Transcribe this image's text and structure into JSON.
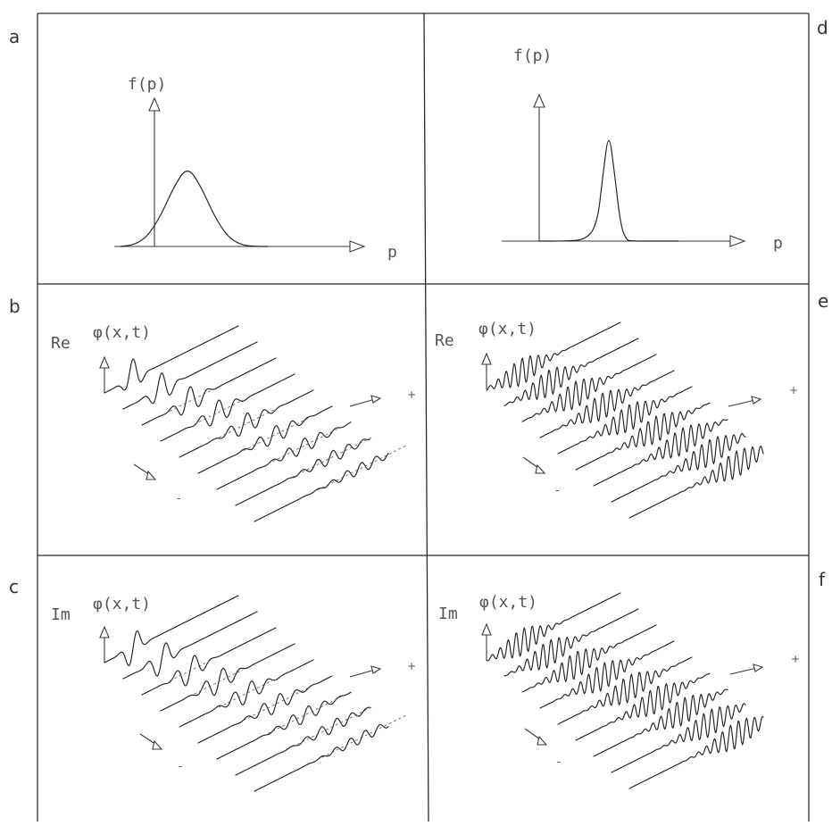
{
  "panels": {
    "a": {
      "letter": "a",
      "ylabel": "f(p)",
      "xlabel": "p"
    },
    "d": {
      "letter": "d",
      "ylabel": "f(p)",
      "xlabel": "p"
    },
    "b": {
      "letter": "b",
      "part": "Re",
      "func": "φ(x,t)"
    },
    "e": {
      "letter": "e",
      "part": "Re",
      "func": "φ(x,t)"
    },
    "c": {
      "letter": "c",
      "part": "Im",
      "func": "φ(x,t)"
    },
    "f": {
      "letter": "f",
      "part": "Im",
      "func": "φ(x,t)"
    }
  },
  "chart_data": [
    {
      "panel": "a",
      "type": "line",
      "title": "",
      "xlabel": "p",
      "ylabel": "f(p)",
      "description": "broad Gaussian momentum distribution centered slightly right of p = 0",
      "x": [
        -0.6,
        -0.4,
        -0.2,
        0.0,
        0.2,
        0.4,
        0.6,
        0.8,
        1.0,
        1.2,
        1.4,
        1.6
      ],
      "values": [
        0.0,
        0.02,
        0.12,
        0.38,
        0.75,
        1.0,
        0.75,
        0.38,
        0.12,
        0.02,
        0.0,
        0.0
      ]
    },
    {
      "panel": "d",
      "type": "line",
      "title": "",
      "xlabel": "p",
      "ylabel": "f(p)",
      "description": "narrow Gaussian momentum distribution centered at larger p",
      "x": [
        0.0,
        0.4,
        0.8,
        1.0,
        1.1,
        1.2,
        1.3,
        1.4,
        1.5,
        1.6,
        2.0,
        2.4
      ],
      "values": [
        0.0,
        0.0,
        0.01,
        0.15,
        0.6,
        1.0,
        0.6,
        0.15,
        0.01,
        0.0,
        0.0,
        0.0
      ]
    }
  ]
}
